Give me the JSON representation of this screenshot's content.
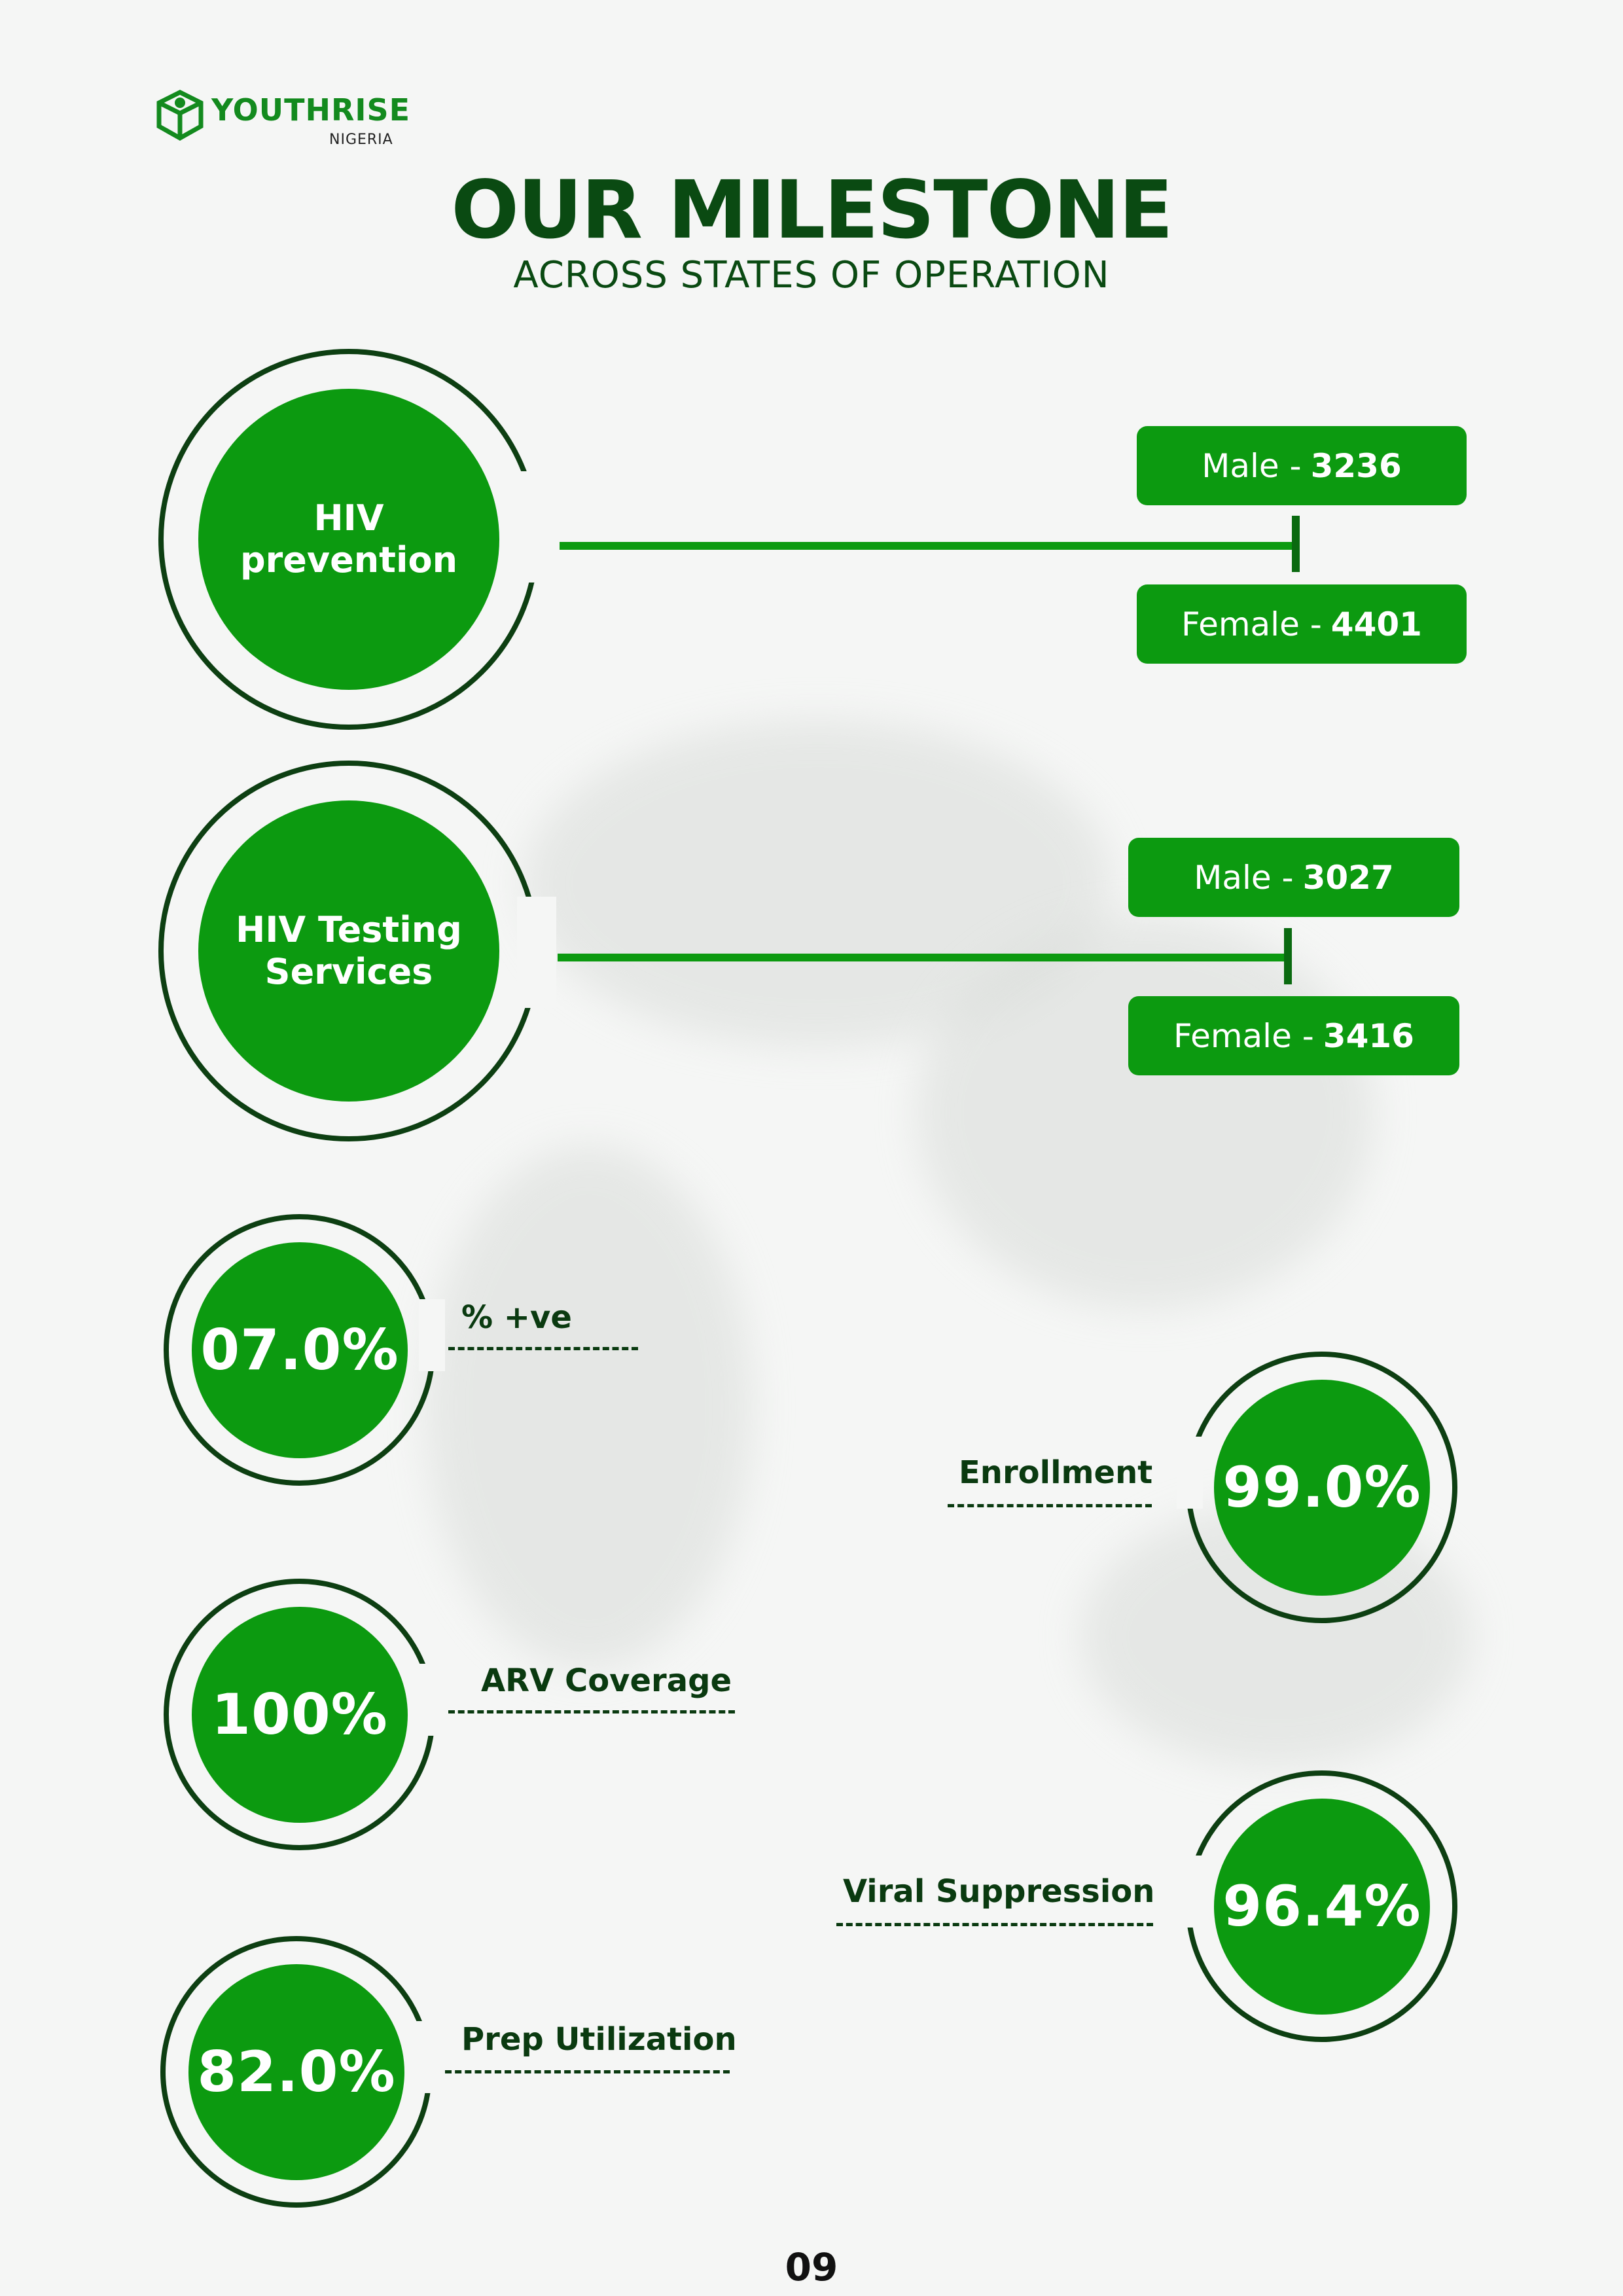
{
  "brand": {
    "name": "YOUTHRISE",
    "sub": "NIGERIA",
    "color": "#138a1e"
  },
  "header": {
    "title": "OUR MILESTONE",
    "subtitle": "ACROSS STATES OF OPERATION"
  },
  "services": [
    {
      "label": "HIV\nprevention",
      "male_label": "Male -",
      "male_value": "3236",
      "female_label": "Female -",
      "female_value": "4401"
    },
    {
      "label": "HIV Testing\nServices",
      "male_label": "Male -",
      "male_value": "3027",
      "female_label": "Female -",
      "female_value": "3416"
    }
  ],
  "stats": [
    {
      "value": "07.0%",
      "label": "% +ve"
    },
    {
      "value": "99.0%",
      "label": "Enrollment"
    },
    {
      "value": "100%",
      "label": "ARV Coverage"
    },
    {
      "value": "96.4%",
      "label": "Viral Suppression"
    },
    {
      "value": "82.0%",
      "label": "Prep Utilization"
    }
  ],
  "page_number": "09",
  "colors": {
    "primary_green": "#0c9a10",
    "dark_green": "#0d3f12",
    "background": "#f5f6f5"
  }
}
